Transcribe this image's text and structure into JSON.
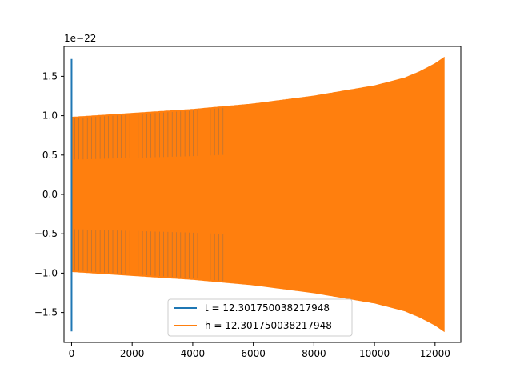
{
  "chart_data": {
    "type": "line",
    "title": "",
    "xlabel": "",
    "ylabel": "",
    "offset_text": "1e−22",
    "xlim": [
      -250,
      12850
    ],
    "ylim": [
      -1.88,
      1.88
    ],
    "xticks": [
      0,
      2000,
      4000,
      6000,
      8000,
      10000,
      12000
    ],
    "xtick_labels": [
      "0",
      "2000",
      "4000",
      "6000",
      "8000",
      "10000",
      "12000"
    ],
    "yticks": [
      -1.5,
      -1.0,
      -0.5,
      0.0,
      0.5,
      1.0,
      1.5
    ],
    "ytick_labels": [
      "−1.5",
      "−1.0",
      "−0.5",
      "0.0",
      "0.5",
      "1.0",
      "1.5"
    ],
    "grid": false,
    "legend_position": "lower center",
    "series": [
      {
        "name": "t = 12.301750038217948",
        "color": "#1f77b4",
        "envelope_x": [
          0,
          12300
        ],
        "envelope_upper": [
          1.72,
          1.72
        ],
        "envelope_lower": [
          -1.74,
          -1.74
        ],
        "description": "vertical spike near x=0 spanning ±1.7"
      },
      {
        "name": "h = 12.301750038217948",
        "color": "#ff7f0e",
        "envelope_x": [
          0,
          2000,
          4000,
          6000,
          8000,
          10000,
          11000,
          11500,
          12000,
          12300
        ],
        "envelope_upper": [
          0.98,
          1.03,
          1.08,
          1.15,
          1.25,
          1.38,
          1.48,
          1.56,
          1.66,
          1.74
        ],
        "envelope_lower": [
          -0.98,
          -1.03,
          -1.08,
          -1.15,
          -1.25,
          -1.38,
          -1.48,
          -1.56,
          -1.66,
          -1.74
        ]
      }
    ]
  }
}
